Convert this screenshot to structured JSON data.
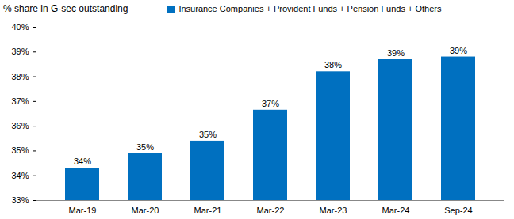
{
  "chart_data": {
    "type": "bar",
    "y_label": "% share in  G-sec outstanding",
    "categories": [
      "Mar-19",
      "Mar-20",
      "Mar-21",
      "Mar-22",
      "Mar-23",
      "Mar-24",
      "Sep-24"
    ],
    "series": [
      {
        "name": "Insurance Companies + Provident Funds + Pension Funds + Others",
        "color": "#0070c0",
        "values": [
          34.3,
          34.9,
          35.4,
          36.65,
          38.2,
          38.7,
          38.8
        ],
        "value_labels": [
          "34%",
          "35%",
          "35%",
          "37%",
          "38%",
          "39%",
          "39%"
        ]
      }
    ],
    "ylim": [
      33,
      40
    ],
    "yticks": [
      {
        "value": 33,
        "label": "33%"
      },
      {
        "value": 34,
        "label": "34%"
      },
      {
        "value": 35,
        "label": "35%"
      },
      {
        "value": 36,
        "label": "36%"
      },
      {
        "value": 37,
        "label": "37%"
      },
      {
        "value": 38,
        "label": "38%"
      },
      {
        "value": 39,
        "label": "39%"
      },
      {
        "value": 40,
        "label": "40%"
      }
    ],
    "grid": false,
    "legend": "top",
    "data_labels": true
  }
}
